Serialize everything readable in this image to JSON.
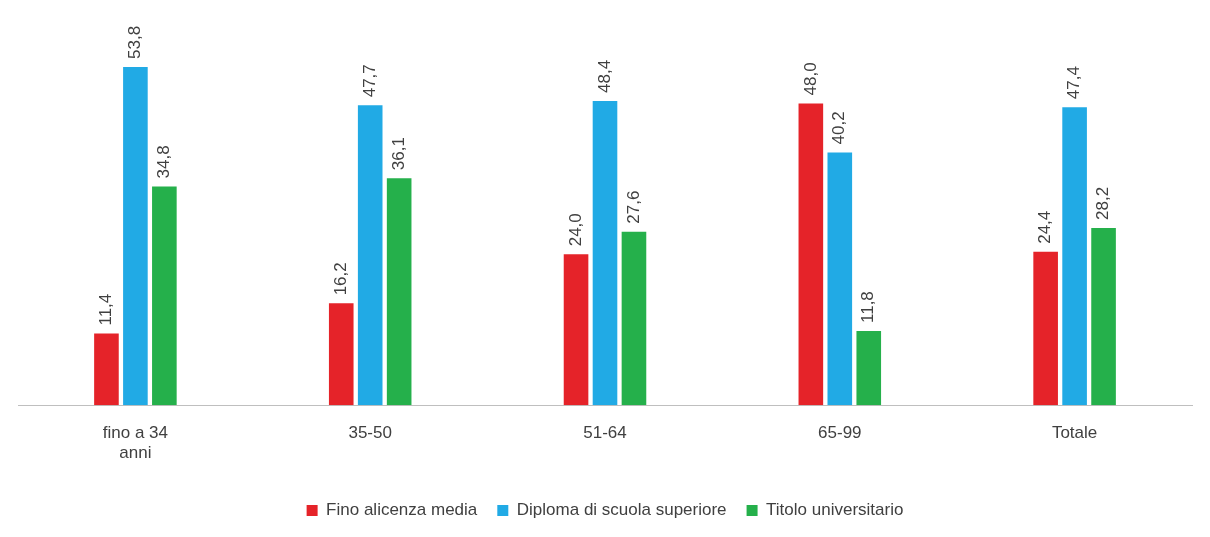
{
  "chart_data": {
    "type": "bar",
    "categories": [
      "fino a 34 anni",
      "35-50",
      "51-64",
      "65-99",
      "Totale"
    ],
    "series": [
      {
        "name": "Fino alicenza media",
        "color": "#e52329",
        "values": [
          11.4,
          16.2,
          24.0,
          48.0,
          24.4
        ],
        "value_labels": [
          "11,4",
          "16,2",
          "24,0",
          "48,0",
          "24,4"
        ]
      },
      {
        "name": "Diploma di scuola superiore",
        "color": "#21aae5",
        "values": [
          53.8,
          47.7,
          48.4,
          40.2,
          47.4
        ],
        "value_labels": [
          "53,8",
          "47,7",
          "48,4",
          "40,2",
          "47,4"
        ]
      },
      {
        "name": "Titolo universitario",
        "color": "#25b04b",
        "values": [
          34.8,
          36.1,
          27.6,
          11.8,
          28.2
        ],
        "value_labels": [
          "34,8",
          "36,1",
          "27,6",
          "11,8",
          "28,2"
        ]
      }
    ],
    "legend": "bottom",
    "grid": false
  }
}
